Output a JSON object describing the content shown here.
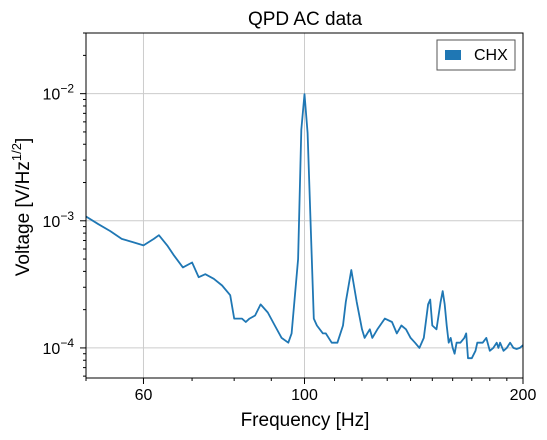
{
  "chart_data": {
    "type": "line",
    "title": "QPD AC data",
    "xlabel": "Frequency [Hz]",
    "ylabel": "Voltage [V/Hz",
    "ylabel_exponent": "1/2",
    "ylabel_close": "]",
    "xscale": "log",
    "yscale": "log",
    "xlim": [
      50,
      200
    ],
    "ylim": [
      5.8e-05,
      0.03
    ],
    "grid": true,
    "legend_position": "top-right",
    "x_ticks": [
      {
        "value": 60,
        "label": "60"
      },
      {
        "value": 100,
        "label": "100"
      },
      {
        "value": 200,
        "label": "200"
      }
    ],
    "y_ticks": [
      {
        "value": 0.0001,
        "base": "10",
        "exp": "−4"
      },
      {
        "value": 0.001,
        "base": "10",
        "exp": "−3"
      },
      {
        "value": 0.01,
        "base": "10",
        "exp": "−2"
      }
    ],
    "series": [
      {
        "name": "CHX",
        "color": "#1f77b4",
        "x": [
          50,
          52,
          54,
          56,
          58,
          60,
          62,
          63,
          64.7,
          66,
          68,
          70,
          71.5,
          73,
          75,
          77,
          79,
          80,
          82,
          83,
          84,
          85.5,
          87,
          89,
          91,
          93,
          95,
          96,
          98,
          99,
          100,
          101,
          103,
          104,
          106,
          107,
          109,
          111,
          113,
          114,
          116,
          118,
          120,
          121,
          123,
          124,
          126,
          129,
          132,
          134,
          136,
          138,
          140,
          142,
          144,
          146,
          148,
          149,
          150,
          152,
          154,
          155,
          156,
          157,
          158,
          159,
          160,
          161,
          162,
          164,
          166,
          167,
          168,
          170,
          172,
          173,
          174,
          176,
          178,
          180,
          182,
          184,
          185,
          186,
          188,
          190,
          192,
          194,
          196,
          198,
          200
        ],
        "y": [
          0.00108,
          0.00094,
          0.00083,
          0.00072,
          0.00068,
          0.00064,
          0.00072,
          0.00077,
          0.00064,
          0.00054,
          0.00043,
          0.00047,
          0.00036,
          0.00038,
          0.00035,
          0.00031,
          0.00026,
          0.00017,
          0.00017,
          0.00016,
          0.00017,
          0.00018,
          0.00022,
          0.00019,
          0.00015,
          0.00012,
          0.00011,
          0.00013,
          0.0005,
          0.0052,
          0.0099,
          0.0049,
          0.00017,
          0.00015,
          0.00013,
          0.00013,
          0.00011,
          0.00011,
          0.00015,
          0.00023,
          0.00041,
          0.00023,
          0.00014,
          0.00012,
          0.00014,
          0.00012,
          0.00014,
          0.00017,
          0.00016,
          0.00013,
          0.00015,
          0.00014,
          0.00012,
          0.00011,
          0.0001,
          0.00012,
          0.00022,
          0.00024,
          0.00015,
          0.00014,
          0.00023,
          0.00028,
          0.00022,
          0.00015,
          0.00011,
          0.00012,
          0.0001,
          9e-05,
          0.00011,
          0.00011,
          0.00012,
          0.00013,
          8.3e-05,
          8.3e-05,
          9.5e-05,
          0.00011,
          0.00011,
          0.00011,
          0.00012,
          9.5e-05,
          0.0001,
          0.00011,
          0.0001,
          0.00011,
          9.5e-05,
          0.0001,
          0.00011,
          0.0001,
          9.8e-05,
          0.0001,
          0.000105
        ]
      }
    ]
  }
}
